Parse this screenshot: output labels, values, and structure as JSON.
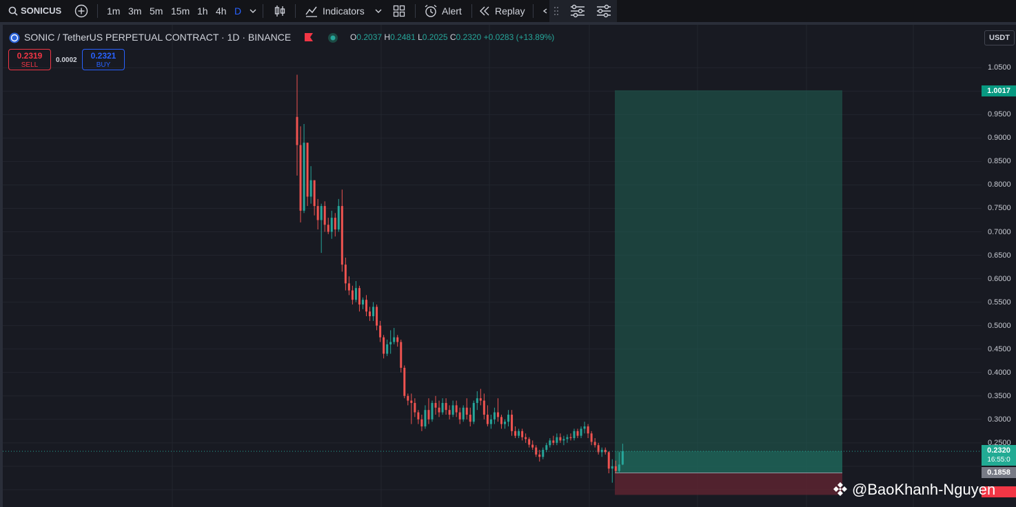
{
  "toolbar": {
    "symbol": "SONICUSI",
    "timeframes": [
      "1m",
      "3m",
      "5m",
      "15m",
      "1h",
      "4h",
      "D"
    ],
    "active_timeframe": "D",
    "indicators_label": "Indicators",
    "alert_label": "Alert",
    "replay_label": "Replay",
    "icons": [
      "search-icon",
      "add-symbol-icon",
      "chevron-down-icon",
      "candles-icon",
      "indicators-icon",
      "layouts-icon",
      "alert-clock-icon",
      "replay-icon",
      "undo-icon",
      "drag-handle-icon",
      "settings-sliders-icon",
      "settings-sliders-icon"
    ]
  },
  "legend": {
    "title": "SONIC / TetherUS PERPETUAL CONTRACT · 1D · BINANCE",
    "o_label": "O",
    "o": "0.2037",
    "h_label": "H",
    "h": "0.2481",
    "l_label": "L",
    "l": "0.2025",
    "c_label": "C",
    "c": "0.2320",
    "change": "+0.0283 (+13.89%)",
    "sell_price": "0.2319",
    "sell_label": "SELL",
    "spread": "0.0002",
    "buy_price": "0.2321",
    "buy_label": "BUY",
    "icons": [
      "sonic-coin-icon",
      "flag-icon",
      "market-open-dot-icon"
    ]
  },
  "price_axis": {
    "currency": "USDT",
    "ticks": [
      "1.0500",
      "0.9500",
      "0.9000",
      "0.8500",
      "0.8000",
      "0.7500",
      "0.7000",
      "0.6500",
      "0.6000",
      "0.5500",
      "0.5000",
      "0.4500",
      "0.4000",
      "0.3500",
      "0.3000",
      "0.2500"
    ],
    "target_label": "1.0017",
    "last_price_label": "0.2320",
    "countdown": "16:55:0",
    "entry_label": "0.1858"
  },
  "watermark": "@BaoKhanh-Nguyen",
  "colors": {
    "up": "#26a69a",
    "down": "#ef5350",
    "background": "#181a22",
    "profit_zone": "#1f5b50",
    "loss_zone": "#5c2530",
    "accent": "#2962ff"
  },
  "chart_data": {
    "type": "candlestick",
    "ylim": [
      0.15,
      1.09
    ],
    "position": {
      "type": "long",
      "target": 1.0017,
      "entry": 0.1858,
      "stop": 0.139
    },
    "candles": [
      {
        "o": 0.945,
        "h": 1.035,
        "l": 0.82,
        "c": 0.885
      },
      {
        "o": 0.885,
        "h": 0.925,
        "l": 0.72,
        "c": 0.745
      },
      {
        "o": 0.745,
        "h": 0.93,
        "l": 0.74,
        "c": 0.89
      },
      {
        "o": 0.89,
        "h": 0.89,
        "l": 0.755,
        "c": 0.775
      },
      {
        "o": 0.775,
        "h": 0.84,
        "l": 0.76,
        "c": 0.81
      },
      {
        "o": 0.81,
        "h": 0.81,
        "l": 0.735,
        "c": 0.755
      },
      {
        "o": 0.755,
        "h": 0.77,
        "l": 0.705,
        "c": 0.725
      },
      {
        "o": 0.725,
        "h": 0.76,
        "l": 0.655,
        "c": 0.755
      },
      {
        "o": 0.755,
        "h": 0.765,
        "l": 0.7,
        "c": 0.715
      },
      {
        "o": 0.715,
        "h": 0.73,
        "l": 0.695,
        "c": 0.7
      },
      {
        "o": 0.7,
        "h": 0.745,
        "l": 0.685,
        "c": 0.73
      },
      {
        "o": 0.73,
        "h": 0.74,
        "l": 0.69,
        "c": 0.705
      },
      {
        "o": 0.705,
        "h": 0.77,
        "l": 0.7,
        "c": 0.755
      },
      {
        "o": 0.755,
        "h": 0.79,
        "l": 0.615,
        "c": 0.63
      },
      {
        "o": 0.63,
        "h": 0.645,
        "l": 0.575,
        "c": 0.59
      },
      {
        "o": 0.59,
        "h": 0.605,
        "l": 0.565,
        "c": 0.575
      },
      {
        "o": 0.575,
        "h": 0.585,
        "l": 0.545,
        "c": 0.555
      },
      {
        "o": 0.555,
        "h": 0.595,
        "l": 0.55,
        "c": 0.58
      },
      {
        "o": 0.58,
        "h": 0.585,
        "l": 0.53,
        "c": 0.545
      },
      {
        "o": 0.545,
        "h": 0.56,
        "l": 0.535,
        "c": 0.555
      },
      {
        "o": 0.555,
        "h": 0.565,
        "l": 0.52,
        "c": 0.53
      },
      {
        "o": 0.53,
        "h": 0.54,
        "l": 0.51,
        "c": 0.52
      },
      {
        "o": 0.52,
        "h": 0.55,
        "l": 0.51,
        "c": 0.54
      },
      {
        "o": 0.54,
        "h": 0.545,
        "l": 0.49,
        "c": 0.5
      },
      {
        "o": 0.5,
        "h": 0.51,
        "l": 0.465,
        "c": 0.475
      },
      {
        "o": 0.475,
        "h": 0.48,
        "l": 0.43,
        "c": 0.44
      },
      {
        "o": 0.44,
        "h": 0.47,
        "l": 0.435,
        "c": 0.46
      },
      {
        "o": 0.46,
        "h": 0.49,
        "l": 0.44,
        "c": 0.465
      },
      {
        "o": 0.465,
        "h": 0.495,
        "l": 0.46,
        "c": 0.475
      },
      {
        "o": 0.475,
        "h": 0.48,
        "l": 0.455,
        "c": 0.465
      },
      {
        "o": 0.465,
        "h": 0.47,
        "l": 0.4,
        "c": 0.41
      },
      {
        "o": 0.41,
        "h": 0.415,
        "l": 0.345,
        "c": 0.35
      },
      {
        "o": 0.35,
        "h": 0.355,
        "l": 0.33,
        "c": 0.34
      },
      {
        "o": 0.34,
        "h": 0.355,
        "l": 0.29,
        "c": 0.335
      },
      {
        "o": 0.335,
        "h": 0.345,
        "l": 0.305,
        "c": 0.315
      },
      {
        "o": 0.315,
        "h": 0.32,
        "l": 0.29,
        "c": 0.3
      },
      {
        "o": 0.3,
        "h": 0.31,
        "l": 0.275,
        "c": 0.285
      },
      {
        "o": 0.285,
        "h": 0.33,
        "l": 0.28,
        "c": 0.32
      },
      {
        "o": 0.32,
        "h": 0.345,
        "l": 0.29,
        "c": 0.3
      },
      {
        "o": 0.3,
        "h": 0.34,
        "l": 0.295,
        "c": 0.335
      },
      {
        "o": 0.335,
        "h": 0.35,
        "l": 0.31,
        "c": 0.325
      },
      {
        "o": 0.325,
        "h": 0.34,
        "l": 0.305,
        "c": 0.315
      },
      {
        "o": 0.315,
        "h": 0.345,
        "l": 0.31,
        "c": 0.335
      },
      {
        "o": 0.335,
        "h": 0.345,
        "l": 0.31,
        "c": 0.32
      },
      {
        "o": 0.32,
        "h": 0.33,
        "l": 0.3,
        "c": 0.31
      },
      {
        "o": 0.31,
        "h": 0.34,
        "l": 0.305,
        "c": 0.33
      },
      {
        "o": 0.33,
        "h": 0.34,
        "l": 0.305,
        "c": 0.315
      },
      {
        "o": 0.315,
        "h": 0.325,
        "l": 0.29,
        "c": 0.3
      },
      {
        "o": 0.3,
        "h": 0.33,
        "l": 0.295,
        "c": 0.325
      },
      {
        "o": 0.325,
        "h": 0.345,
        "l": 0.3,
        "c": 0.31
      },
      {
        "o": 0.31,
        "h": 0.325,
        "l": 0.285,
        "c": 0.295
      },
      {
        "o": 0.295,
        "h": 0.34,
        "l": 0.29,
        "c": 0.335
      },
      {
        "o": 0.335,
        "h": 0.36,
        "l": 0.32,
        "c": 0.345
      },
      {
        "o": 0.345,
        "h": 0.365,
        "l": 0.33,
        "c": 0.34
      },
      {
        "o": 0.34,
        "h": 0.355,
        "l": 0.3,
        "c": 0.31
      },
      {
        "o": 0.31,
        "h": 0.33,
        "l": 0.285,
        "c": 0.29
      },
      {
        "o": 0.29,
        "h": 0.31,
        "l": 0.28,
        "c": 0.3
      },
      {
        "o": 0.3,
        "h": 0.325,
        "l": 0.29,
        "c": 0.315
      },
      {
        "o": 0.315,
        "h": 0.345,
        "l": 0.295,
        "c": 0.305
      },
      {
        "o": 0.305,
        "h": 0.31,
        "l": 0.28,
        "c": 0.29
      },
      {
        "o": 0.29,
        "h": 0.3,
        "l": 0.28,
        "c": 0.295
      },
      {
        "o": 0.295,
        "h": 0.32,
        "l": 0.285,
        "c": 0.31
      },
      {
        "o": 0.31,
        "h": 0.32,
        "l": 0.265,
        "c": 0.275
      },
      {
        "o": 0.275,
        "h": 0.285,
        "l": 0.26,
        "c": 0.265
      },
      {
        "o": 0.265,
        "h": 0.28,
        "l": 0.26,
        "c": 0.275
      },
      {
        "o": 0.275,
        "h": 0.28,
        "l": 0.255,
        "c": 0.262
      },
      {
        "o": 0.262,
        "h": 0.27,
        "l": 0.25,
        "c": 0.258
      },
      {
        "o": 0.258,
        "h": 0.262,
        "l": 0.24,
        "c": 0.246
      },
      {
        "o": 0.246,
        "h": 0.255,
        "l": 0.235,
        "c": 0.24
      },
      {
        "o": 0.24,
        "h": 0.245,
        "l": 0.22,
        "c": 0.225
      },
      {
        "o": 0.225,
        "h": 0.235,
        "l": 0.21,
        "c": 0.22
      },
      {
        "o": 0.22,
        "h": 0.24,
        "l": 0.215,
        "c": 0.235
      },
      {
        "o": 0.235,
        "h": 0.25,
        "l": 0.23,
        "c": 0.245
      },
      {
        "o": 0.245,
        "h": 0.26,
        "l": 0.24,
        "c": 0.255
      },
      {
        "o": 0.255,
        "h": 0.265,
        "l": 0.245,
        "c": 0.25
      },
      {
        "o": 0.25,
        "h": 0.27,
        "l": 0.245,
        "c": 0.262
      },
      {
        "o": 0.262,
        "h": 0.27,
        "l": 0.25,
        "c": 0.255
      },
      {
        "o": 0.255,
        "h": 0.265,
        "l": 0.245,
        "c": 0.258
      },
      {
        "o": 0.258,
        "h": 0.268,
        "l": 0.25,
        "c": 0.262
      },
      {
        "o": 0.262,
        "h": 0.27,
        "l": 0.255,
        "c": 0.26
      },
      {
        "o": 0.26,
        "h": 0.28,
        "l": 0.255,
        "c": 0.275
      },
      {
        "o": 0.275,
        "h": 0.28,
        "l": 0.26,
        "c": 0.265
      },
      {
        "o": 0.265,
        "h": 0.285,
        "l": 0.26,
        "c": 0.28
      },
      {
        "o": 0.28,
        "h": 0.295,
        "l": 0.27,
        "c": 0.285
      },
      {
        "o": 0.285,
        "h": 0.29,
        "l": 0.26,
        "c": 0.27
      },
      {
        "o": 0.27,
        "h": 0.275,
        "l": 0.245,
        "c": 0.252
      },
      {
        "o": 0.252,
        "h": 0.26,
        "l": 0.24,
        "c": 0.245
      },
      {
        "o": 0.245,
        "h": 0.25,
        "l": 0.225,
        "c": 0.23
      },
      {
        "o": 0.23,
        "h": 0.24,
        "l": 0.22,
        "c": 0.235
      },
      {
        "o": 0.235,
        "h": 0.24,
        "l": 0.225,
        "c": 0.23
      },
      {
        "o": 0.23,
        "h": 0.232,
        "l": 0.185,
        "c": 0.195
      },
      {
        "o": 0.195,
        "h": 0.215,
        "l": 0.165,
        "c": 0.2
      },
      {
        "o": 0.2,
        "h": 0.212,
        "l": 0.185,
        "c": 0.19
      },
      {
        "o": 0.19,
        "h": 0.23,
        "l": 0.185,
        "c": 0.2037
      },
      {
        "o": 0.2037,
        "h": 0.2481,
        "l": 0.2025,
        "c": 0.232
      }
    ]
  }
}
